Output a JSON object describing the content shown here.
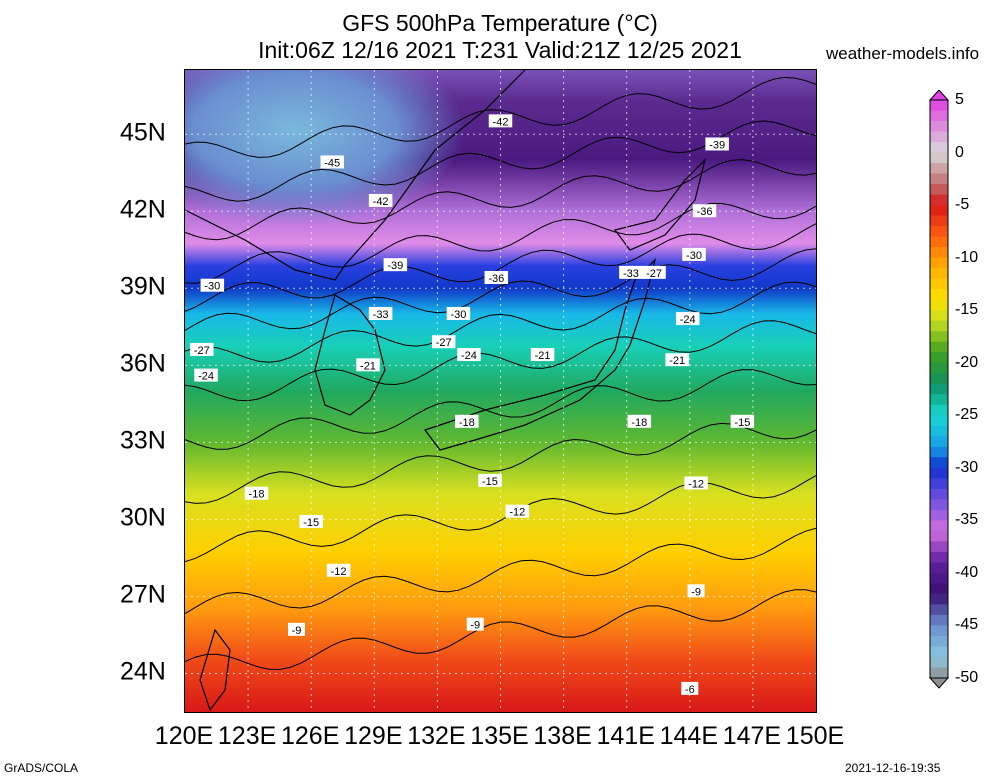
{
  "header": {
    "title": "GFS 500hPa Temperature (°C)",
    "subtitle": "Init:06Z 12/16 2021 T:231 Valid:21Z 12/25 2021",
    "site": "weather-models.info"
  },
  "footer": {
    "credit": "GrADS/COLA",
    "timestamp": "2021-12-16-19:35"
  },
  "map": {
    "lat_range": [
      22.5,
      47.5
    ],
    "lon_range": [
      120,
      150
    ],
    "lat_labels": [
      "45N",
      "42N",
      "39N",
      "36N",
      "33N",
      "30N",
      "27N",
      "24N"
    ],
    "lon_labels": [
      "120E",
      "123E",
      "126E",
      "129E",
      "132E",
      "135E",
      "138E",
      "141E",
      "144E",
      "147E",
      "150E"
    ],
    "grid": "dotted"
  },
  "colorbar": {
    "min": -50,
    "max": 5,
    "step": 1,
    "labels": [
      "5",
      "0",
      "-5",
      "-10",
      "-15",
      "-20",
      "-25",
      "-30",
      "-35",
      "-40",
      "-45",
      "-50"
    ]
  },
  "contours": [
    {
      "text": "-42",
      "lon": 135.0,
      "lat": 45.5
    },
    {
      "text": "-45",
      "lon": 127.0,
      "lat": 43.9
    },
    {
      "text": "-42",
      "lon": 129.3,
      "lat": 42.4
    },
    {
      "text": "-39",
      "lon": 130.0,
      "lat": 39.9
    },
    {
      "text": "-39",
      "lon": 145.3,
      "lat": 44.6
    },
    {
      "text": "-36",
      "lon": 134.8,
      "lat": 39.4
    },
    {
      "text": "-36",
      "lon": 144.7,
      "lat": 42.0
    },
    {
      "text": "-33",
      "lon": 129.3,
      "lat": 38.0
    },
    {
      "text": "-33",
      "lon": 141.2,
      "lat": 39.6
    },
    {
      "text": "-30",
      "lon": 121.3,
      "lat": 39.1
    },
    {
      "text": "-30",
      "lon": 133.0,
      "lat": 38.0
    },
    {
      "text": "-30",
      "lon": 144.2,
      "lat": 40.3
    },
    {
      "text": "-27",
      "lon": 142.3,
      "lat": 39.6
    },
    {
      "text": "-27",
      "lon": 132.3,
      "lat": 36.9
    },
    {
      "text": "-27",
      "lon": 120.8,
      "lat": 36.6
    },
    {
      "text": "-24",
      "lon": 133.5,
      "lat": 36.4
    },
    {
      "text": "-24",
      "lon": 143.9,
      "lat": 37.8
    },
    {
      "text": "-24",
      "lon": 121.0,
      "lat": 35.6
    },
    {
      "text": "-21",
      "lon": 128.7,
      "lat": 36.0
    },
    {
      "text": "-21",
      "lon": 137.0,
      "lat": 36.4
    },
    {
      "text": "-21",
      "lon": 143.4,
      "lat": 36.2
    },
    {
      "text": "-18",
      "lon": 133.4,
      "lat": 33.8
    },
    {
      "text": "-18",
      "lon": 141.6,
      "lat": 33.8
    },
    {
      "text": "-18",
      "lon": 123.4,
      "lat": 31.0
    },
    {
      "text": "-15",
      "lon": 146.5,
      "lat": 33.8
    },
    {
      "text": "-15",
      "lon": 134.5,
      "lat": 31.5
    },
    {
      "text": "-15",
      "lon": 126.0,
      "lat": 29.9
    },
    {
      "text": "-12",
      "lon": 135.8,
      "lat": 30.3
    },
    {
      "text": "-12",
      "lon": 144.3,
      "lat": 31.4
    },
    {
      "text": "-12",
      "lon": 127.3,
      "lat": 28.0
    },
    {
      "text": "-9",
      "lon": 144.3,
      "lat": 27.2
    },
    {
      "text": "-9",
      "lon": 133.8,
      "lat": 25.9
    },
    {
      "text": "-9",
      "lon": 125.3,
      "lat": 25.7
    },
    {
      "text": "-6",
      "lon": 144.0,
      "lat": 23.4
    }
  ]
}
